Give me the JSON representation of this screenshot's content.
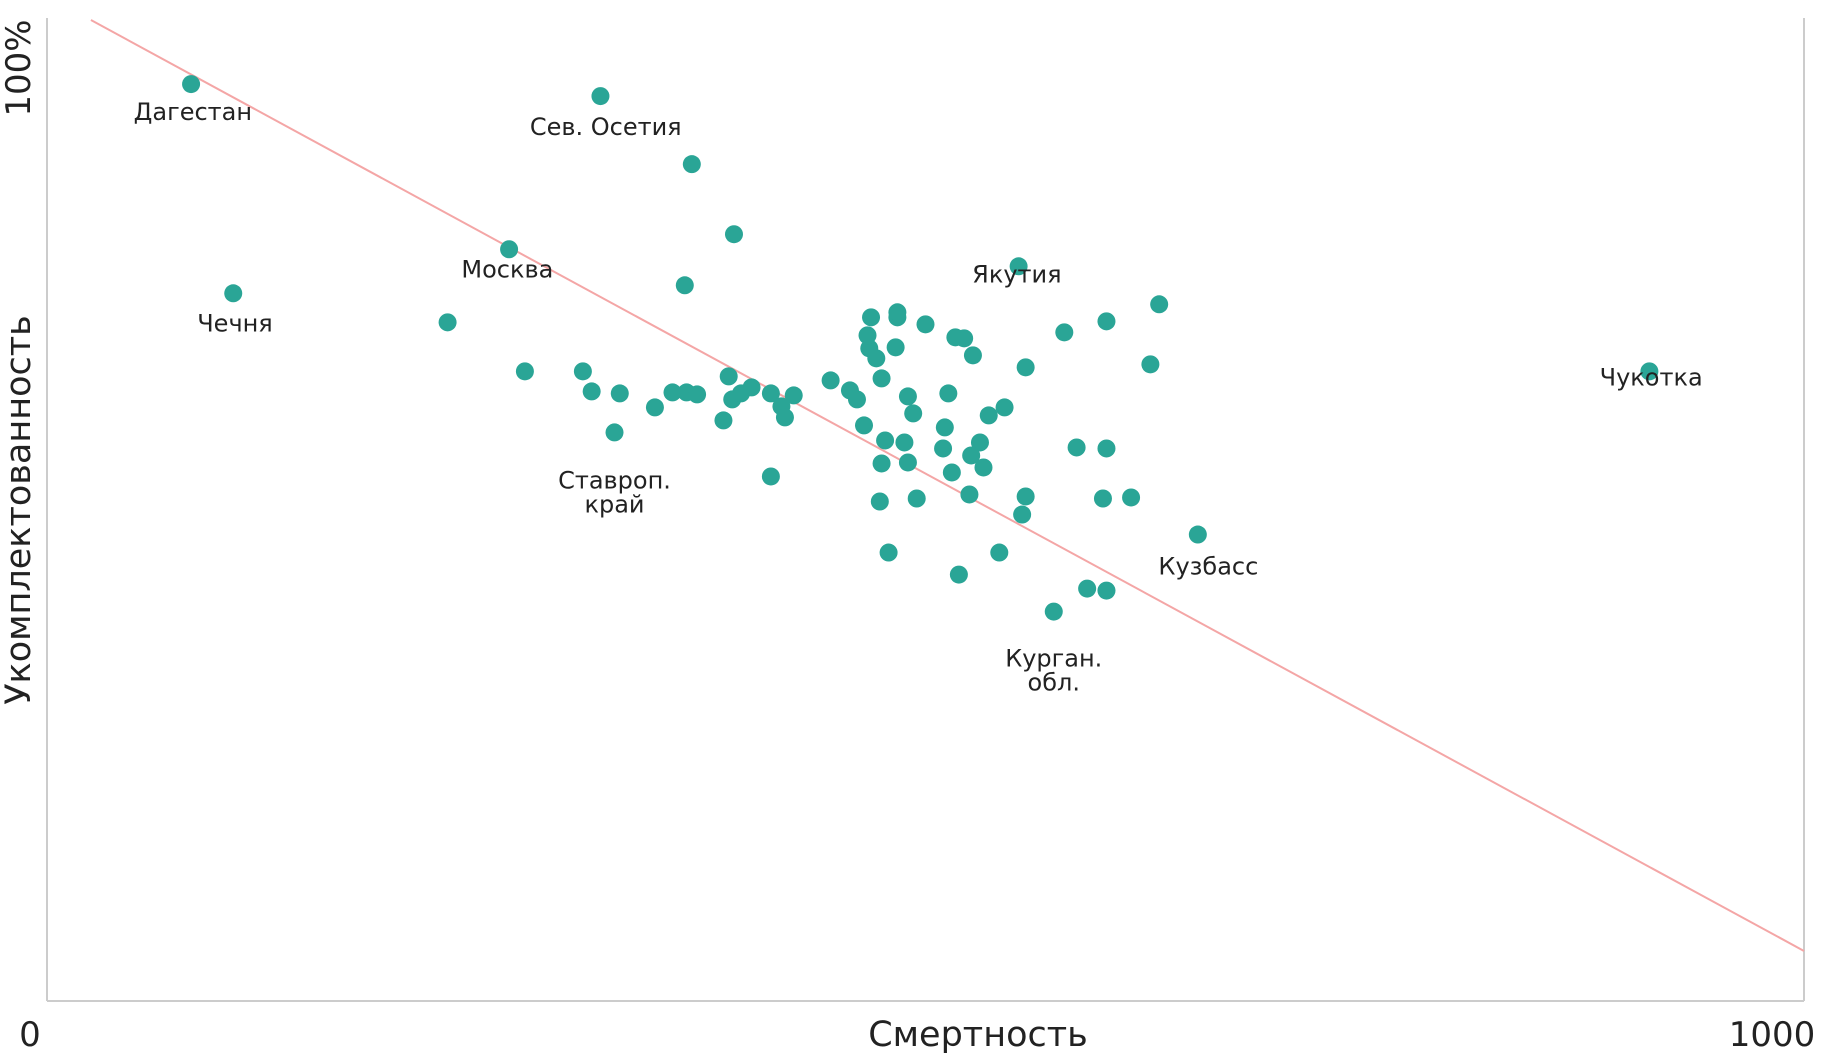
{
  "chart_data": {
    "type": "scatter",
    "title": "",
    "xlabel": "Смертность",
    "ylabel": "Укомплектованность",
    "x_tick_labels": [
      "0",
      "1000"
    ],
    "y_tick_labels": [
      "100%"
    ],
    "xlim": [
      0,
      1000
    ],
    "ylim": [
      0,
      100
    ],
    "grid": false,
    "colors": {
      "point": "#2aa596",
      "trend": "#f4a6a6",
      "axis": "#cccccc",
      "text": "#222222"
    },
    "trendline": {
      "x": [
        25,
        1000
      ],
      "y": [
        98,
        5
      ]
    },
    "annotations": [
      {
        "lines": [
          "Дагестан"
        ],
        "x": 83,
        "y": 88
      },
      {
        "lines": [
          "Сев. Осетия"
        ],
        "x": 318,
        "y": 86.5
      },
      {
        "lines": [
          "Москва"
        ],
        "x": 262,
        "y": 72.3
      },
      {
        "lines": [
          "Чечня"
        ],
        "x": 107,
        "y": 66.9
      },
      {
        "lines": [
          "Якутия"
        ],
        "x": 552,
        "y": 71.8
      },
      {
        "lines": [
          "Чукотка"
        ],
        "x": 913,
        "y": 61.5
      },
      {
        "lines": [
          "Ставроп.",
          "край"
        ],
        "x": 323,
        "y": 51.2
      },
      {
        "lines": [
          "Кузбасс"
        ],
        "x": 661,
        "y": 42.6
      },
      {
        "lines": [
          "Курган.",
          "обл."
        ],
        "x": 573,
        "y": 33.4
      }
    ],
    "points": [
      {
        "x": 82,
        "y": 91.6
      },
      {
        "x": 106,
        "y": 70.7
      },
      {
        "x": 315,
        "y": 90.4
      },
      {
        "x": 367,
        "y": 83.6
      },
      {
        "x": 263,
        "y": 75.1
      },
      {
        "x": 553,
        "y": 73.4
      },
      {
        "x": 912,
        "y": 62.9
      },
      {
        "x": 228,
        "y": 67.8
      },
      {
        "x": 272,
        "y": 62.9
      },
      {
        "x": 305,
        "y": 62.9
      },
      {
        "x": 310,
        "y": 60.9
      },
      {
        "x": 326,
        "y": 60.7
      },
      {
        "x": 346,
        "y": 59.3
      },
      {
        "x": 356,
        "y": 60.8
      },
      {
        "x": 364,
        "y": 60.8
      },
      {
        "x": 370,
        "y": 60.6
      },
      {
        "x": 363,
        "y": 71.5
      },
      {
        "x": 391,
        "y": 76.6
      },
      {
        "x": 388,
        "y": 62.4
      },
      {
        "x": 390,
        "y": 60.1
      },
      {
        "x": 395,
        "y": 60.7
      },
      {
        "x": 401,
        "y": 61.3
      },
      {
        "x": 385,
        "y": 58.0
      },
      {
        "x": 412,
        "y": 60.7
      },
      {
        "x": 418,
        "y": 59.4
      },
      {
        "x": 420,
        "y": 58.3
      },
      {
        "x": 425,
        "y": 60.5
      },
      {
        "x": 412,
        "y": 52.4
      },
      {
        "x": 323,
        "y": 56.8
      },
      {
        "x": 446,
        "y": 62.0
      },
      {
        "x": 457,
        "y": 61.0
      },
      {
        "x": 461,
        "y": 60.1
      },
      {
        "x": 468,
        "y": 65.2
      },
      {
        "x": 467,
        "y": 66.5
      },
      {
        "x": 469,
        "y": 68.3
      },
      {
        "x": 472,
        "y": 64.2
      },
      {
        "x": 475,
        "y": 62.2
      },
      {
        "x": 465,
        "y": 57.5
      },
      {
        "x": 484,
        "y": 68.3
      },
      {
        "x": 484,
        "y": 68.8
      },
      {
        "x": 483,
        "y": 65.3
      },
      {
        "x": 500,
        "y": 67.6
      },
      {
        "x": 490,
        "y": 60.4
      },
      {
        "x": 493,
        "y": 58.7
      },
      {
        "x": 477,
        "y": 56.0
      },
      {
        "x": 488,
        "y": 55.8
      },
      {
        "x": 475,
        "y": 53.7
      },
      {
        "x": 490,
        "y": 53.8
      },
      {
        "x": 511,
        "y": 57.3
      },
      {
        "x": 510,
        "y": 55.2
      },
      {
        "x": 513,
        "y": 60.7
      },
      {
        "x": 517,
        "y": 66.3
      },
      {
        "x": 522,
        "y": 66.2
      },
      {
        "x": 527,
        "y": 64.5
      },
      {
        "x": 531,
        "y": 55.8
      },
      {
        "x": 526,
        "y": 54.5
      },
      {
        "x": 515,
        "y": 52.8
      },
      {
        "x": 525,
        "y": 50.6
      },
      {
        "x": 536,
        "y": 58.5
      },
      {
        "x": 545,
        "y": 59.3
      },
      {
        "x": 557,
        "y": 63.3
      },
      {
        "x": 579,
        "y": 66.8
      },
      {
        "x": 603,
        "y": 67.9
      },
      {
        "x": 586,
        "y": 55.3
      },
      {
        "x": 603,
        "y": 55.2
      },
      {
        "x": 633,
        "y": 69.6
      },
      {
        "x": 628,
        "y": 63.6
      },
      {
        "x": 617,
        "y": 50.3
      },
      {
        "x": 601,
        "y": 50.2
      },
      {
        "x": 533,
        "y": 53.3
      },
      {
        "x": 557,
        "y": 50.4
      },
      {
        "x": 555,
        "y": 48.6
      },
      {
        "x": 474,
        "y": 49.9
      },
      {
        "x": 495,
        "y": 50.2
      },
      {
        "x": 479,
        "y": 44.8
      },
      {
        "x": 519,
        "y": 42.6
      },
      {
        "x": 542,
        "y": 44.8
      },
      {
        "x": 573,
        "y": 38.9
      },
      {
        "x": 592,
        "y": 41.2
      },
      {
        "x": 603,
        "y": 41.0
      },
      {
        "x": 655,
        "y": 46.6
      }
    ]
  }
}
